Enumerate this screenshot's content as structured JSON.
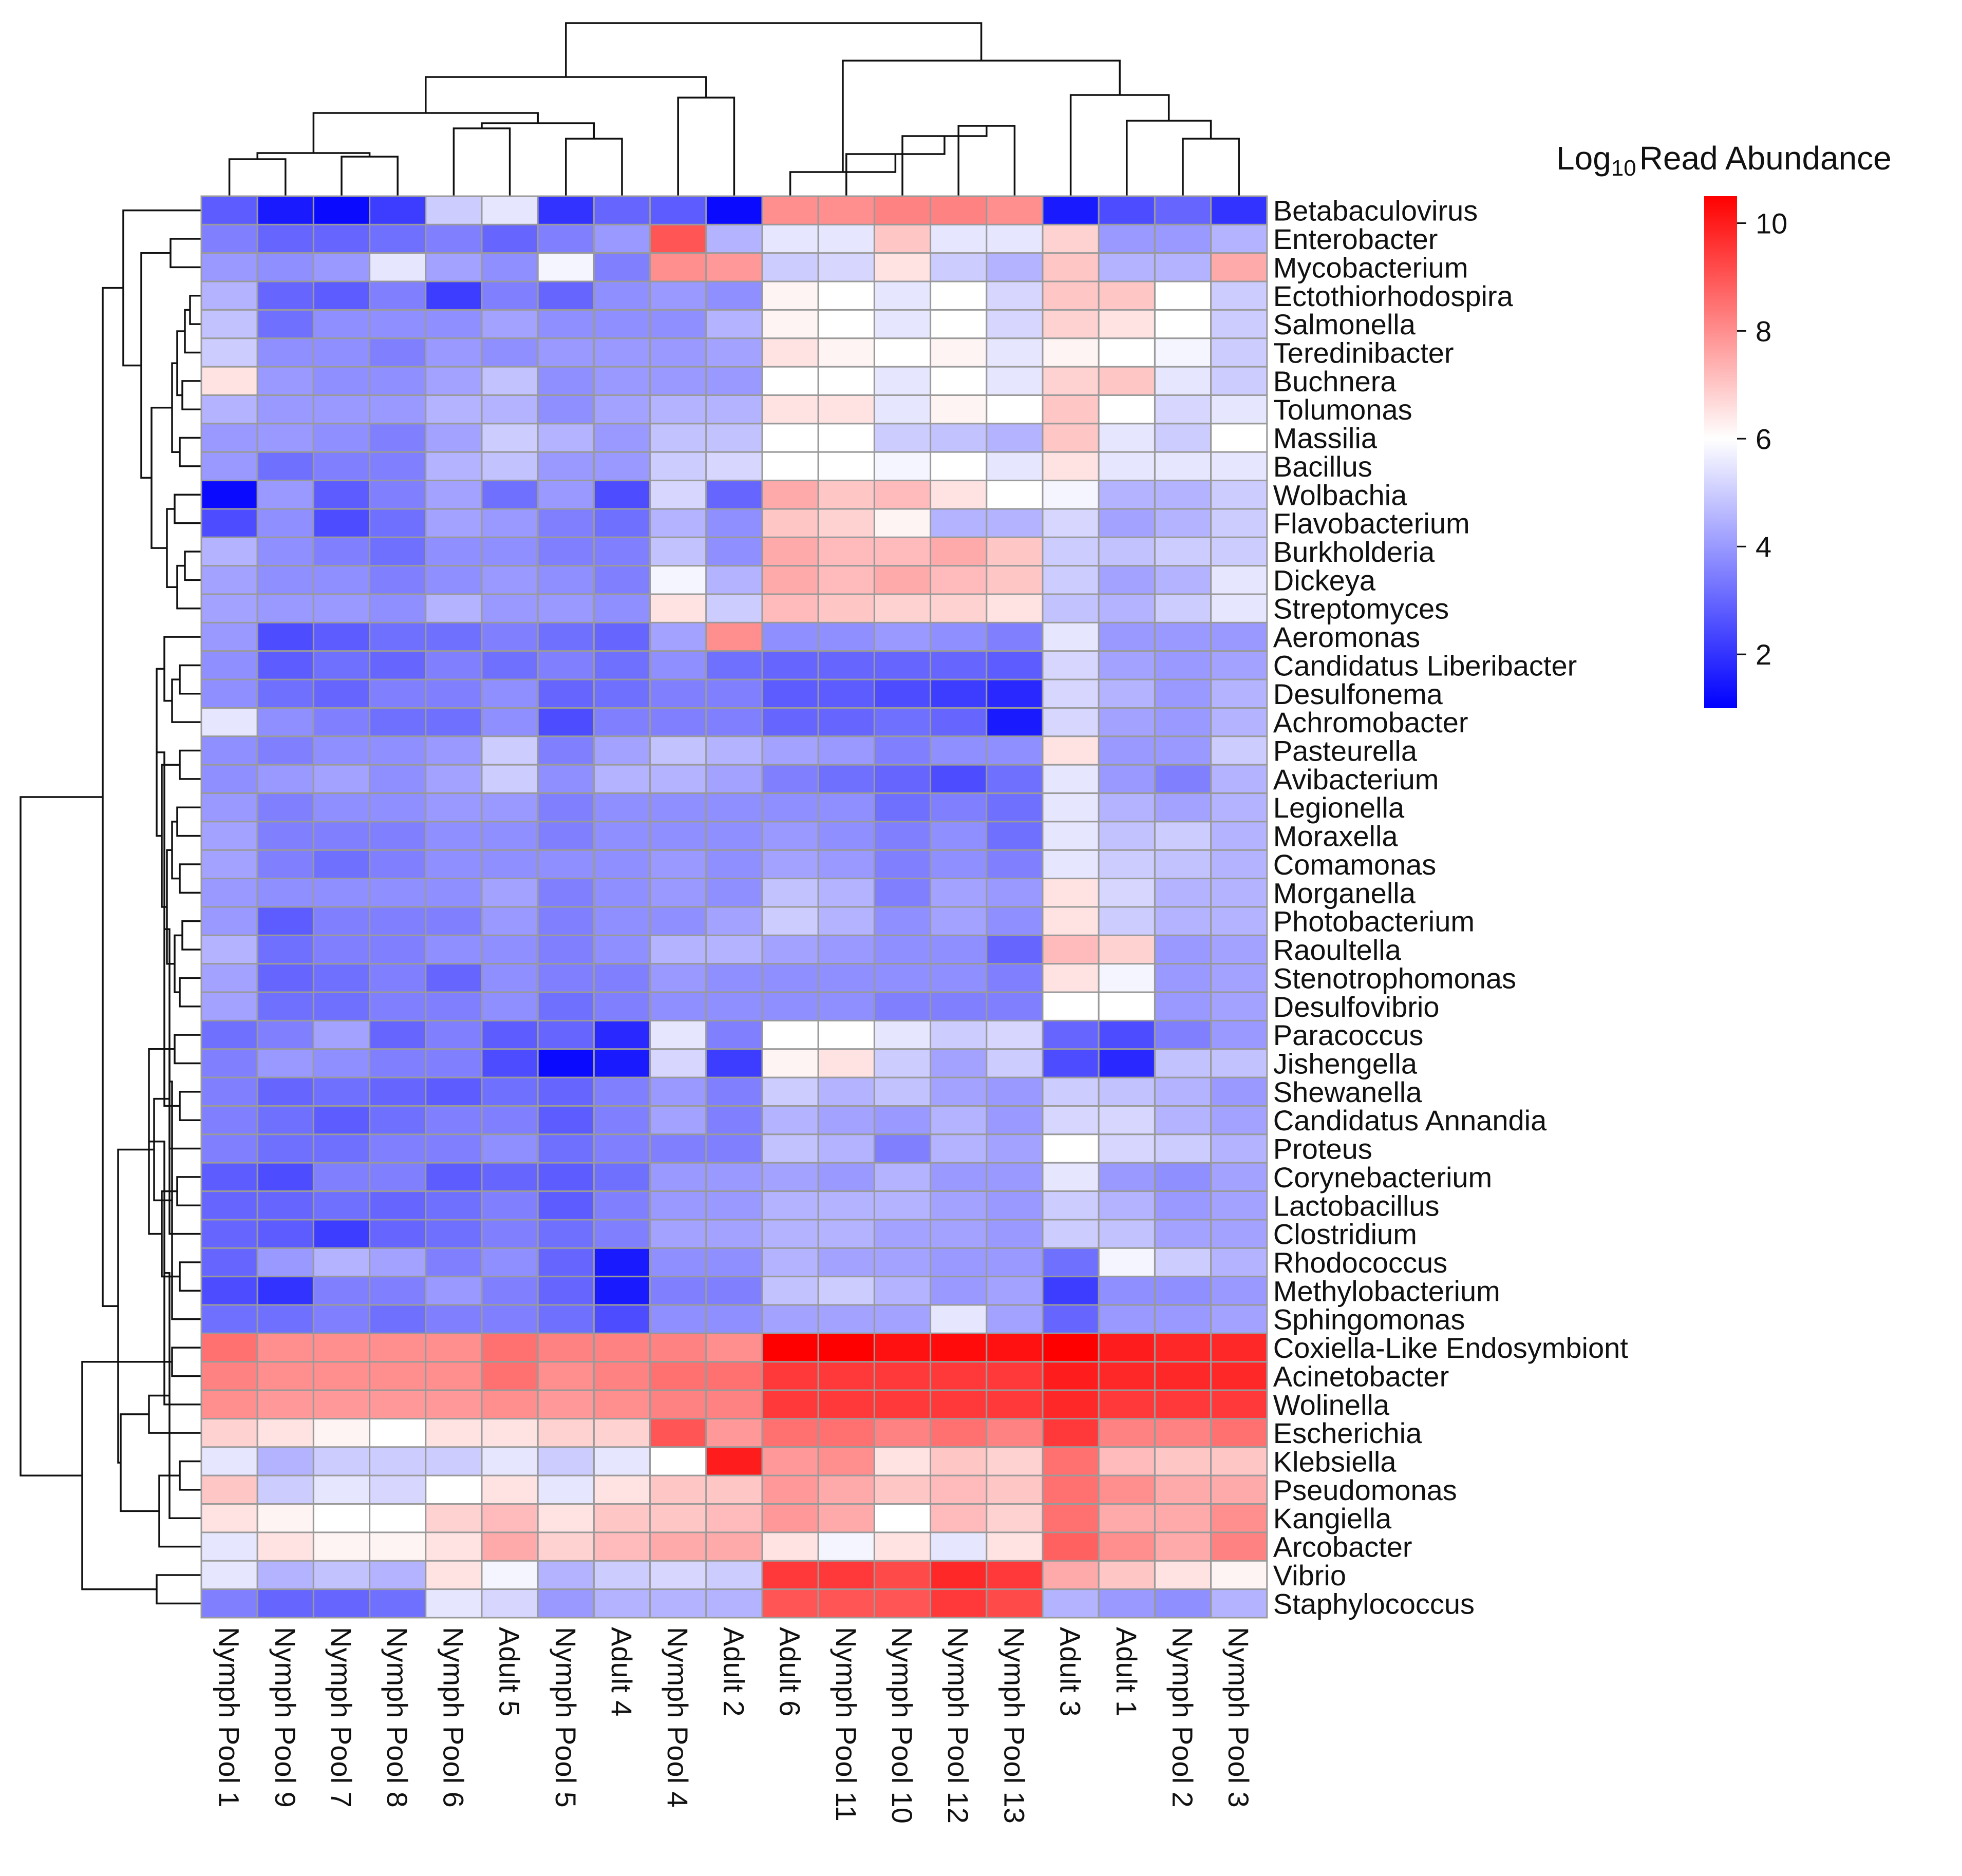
{
  "chart_data": {
    "type": "heatmap",
    "title": "",
    "legend": {
      "title_prefix": "Log",
      "title_sub": "10",
      "title_suffix": "Read Abundance",
      "min": 1,
      "max": 10.5,
      "ticks": [
        2,
        4,
        6,
        8,
        10
      ],
      "colors": [
        "#0000ff",
        "#ffffff",
        "#ff0000"
      ],
      "midpoint": 6,
      "placement": "top-right"
    },
    "columns": [
      "Nymph Pool 1",
      "Nymph Pool 9",
      "Nymph Pool 7",
      "Nymph Pool 8",
      "Nymph Pool 6",
      "Adult 5",
      "Nymph Pool 5",
      "Adult 4",
      "Nymph Pool 4",
      "Adult 2",
      "Adult 6",
      "Nymph Pool 11",
      "Nymph Pool 10",
      "Nymph Pool 12",
      "Nymph Pool 13",
      "Adult 3",
      "Adult 1",
      "Nymph Pool 2",
      "Nymph Pool 3"
    ],
    "rows": [
      "Betabaculovirus",
      "Enterobacter",
      "Mycobacterium",
      "Ectothiorhodospira",
      "Salmonella",
      "Teredinibacter",
      "Buchnera",
      "Tolumonas",
      "Massilia",
      "Bacillus",
      "Wolbachia",
      "Flavobacterium",
      "Burkholderia",
      "Dickeya",
      "Streptomyces",
      "Aeromonas",
      "Candidatus Liberibacter",
      "Desulfonema",
      "Achromobacter",
      "Pasteurella",
      "Avibacterium",
      "Legionella",
      "Moraxella",
      "Comamonas",
      "Morganella",
      "Photobacterium",
      "Raoultella",
      "Stenotrophomonas",
      "Desulfovibrio",
      "Paracoccus",
      "Jishengella",
      "Shewanella",
      "Candidatus Annandia",
      "Proteus",
      "Corynebacterium",
      "Lactobacillus",
      "Clostridium",
      "Rhodococcus",
      "Methylobacterium",
      "Sphingomonas",
      "Coxiella-Like Endosymbiont",
      "Acinetobacter",
      "Wolinella",
      "Escherichia",
      "Klebsiella",
      "Pseudomonas",
      "Kangiella",
      "Arcobacter",
      "Vibrio",
      "Staphylococcus"
    ],
    "values": [
      [
        2.8,
        1.5,
        1.2,
        2.2,
        5.0,
        5.5,
        2.0,
        3.0,
        2.8,
        1.2,
        8.0,
        8.0,
        8.2,
        8.2,
        8.0,
        1.5,
        2.5,
        3.0,
        2.0
      ],
      [
        3.5,
        3.0,
        3.0,
        3.2,
        3.5,
        3.0,
        3.5,
        4.0,
        9.0,
        4.5,
        5.5,
        5.5,
        7.0,
        5.5,
        5.5,
        6.8,
        4.0,
        4.0,
        4.5
      ],
      [
        4.0,
        3.8,
        4.0,
        5.5,
        4.2,
        3.8,
        5.8,
        3.5,
        8.0,
        7.8,
        5.0,
        5.2,
        6.5,
        5.0,
        4.5,
        7.0,
        4.5,
        4.5,
        7.5
      ],
      [
        4.5,
        3.0,
        2.8,
        3.5,
        2.2,
        3.5,
        3.0,
        3.8,
        4.0,
        3.8,
        6.2,
        6.0,
        5.5,
        6.0,
        5.2,
        7.0,
        7.0,
        6.0,
        5.0
      ],
      [
        4.8,
        3.2,
        3.8,
        3.8,
        3.8,
        4.2,
        3.8,
        3.8,
        3.8,
        4.5,
        6.2,
        6.0,
        5.5,
        6.0,
        5.2,
        6.8,
        6.5,
        6.0,
        5.0
      ],
      [
        5.0,
        3.8,
        3.8,
        3.5,
        4.0,
        3.8,
        4.0,
        4.0,
        4.0,
        4.2,
        6.5,
        6.2,
        6.0,
        6.2,
        5.5,
        6.2,
        6.0,
        5.8,
        5.0
      ],
      [
        6.5,
        4.0,
        3.8,
        3.8,
        4.2,
        4.8,
        3.8,
        4.0,
        4.0,
        4.0,
        6.0,
        6.0,
        5.5,
        6.0,
        5.5,
        6.8,
        7.0,
        5.5,
        5.0
      ],
      [
        4.5,
        4.0,
        4.0,
        4.0,
        4.5,
        4.5,
        3.8,
        4.2,
        4.5,
        4.5,
        6.5,
        6.5,
        5.5,
        6.2,
        6.0,
        7.0,
        6.0,
        5.2,
        5.5
      ],
      [
        4.0,
        4.0,
        3.8,
        3.5,
        4.2,
        5.0,
        4.5,
        4.0,
        4.8,
        4.8,
        6.0,
        6.0,
        5.0,
        4.8,
        4.5,
        7.0,
        5.5,
        5.0,
        6.0
      ],
      [
        4.0,
        3.2,
        3.5,
        3.5,
        4.5,
        4.8,
        4.0,
        4.0,
        5.0,
        5.2,
        6.0,
        6.0,
        5.8,
        6.0,
        5.5,
        6.5,
        5.5,
        5.5,
        5.5
      ],
      [
        1.2,
        4.0,
        2.8,
        3.5,
        4.2,
        3.2,
        4.0,
        2.5,
        5.2,
        3.0,
        7.5,
        7.0,
        7.2,
        6.5,
        6.0,
        5.8,
        4.5,
        4.5,
        5.0
      ],
      [
        2.5,
        3.8,
        2.5,
        3.2,
        4.2,
        4.0,
        3.5,
        3.2,
        4.5,
        3.8,
        7.0,
        6.8,
        6.2,
        4.5,
        4.5,
        5.2,
        4.2,
        4.5,
        5.0
      ],
      [
        4.5,
        3.8,
        3.5,
        3.2,
        3.8,
        3.8,
        3.5,
        3.5,
        4.8,
        3.8,
        7.5,
        7.2,
        7.2,
        7.5,
        7.0,
        5.0,
        4.8,
        5.0,
        5.0
      ],
      [
        4.2,
        3.8,
        3.8,
        3.5,
        3.8,
        4.0,
        3.8,
        3.5,
        5.8,
        4.5,
        7.5,
        7.2,
        7.5,
        7.2,
        7.0,
        5.0,
        4.2,
        4.5,
        5.5
      ],
      [
        4.2,
        4.0,
        4.0,
        3.8,
        4.5,
        4.0,
        4.0,
        3.8,
        6.5,
        5.0,
        7.2,
        7.0,
        6.8,
        6.8,
        6.5,
        4.8,
        4.5,
        5.0,
        5.5
      ],
      [
        4.0,
        2.5,
        2.8,
        3.2,
        3.2,
        3.5,
        3.2,
        3.0,
        4.2,
        8.0,
        3.8,
        3.8,
        4.0,
        3.8,
        3.5,
        5.5,
        4.0,
        4.0,
        4.0
      ],
      [
        3.8,
        2.8,
        3.2,
        3.0,
        3.5,
        3.2,
        3.5,
        3.2,
        3.8,
        3.2,
        3.0,
        3.0,
        3.0,
        3.0,
        2.8,
        5.2,
        4.2,
        4.0,
        4.2
      ],
      [
        3.8,
        3.2,
        3.0,
        3.5,
        3.5,
        3.8,
        3.0,
        3.2,
        3.5,
        3.5,
        2.8,
        2.8,
        2.5,
        2.2,
        1.8,
        5.2,
        4.5,
        4.0,
        4.5
      ],
      [
        5.5,
        3.8,
        3.5,
        3.2,
        3.2,
        3.8,
        2.5,
        3.5,
        3.5,
        3.5,
        3.0,
        3.0,
        3.2,
        3.0,
        1.5,
        5.2,
        4.2,
        4.0,
        4.5
      ],
      [
        3.8,
        3.5,
        3.8,
        3.8,
        4.0,
        5.0,
        3.5,
        4.2,
        4.8,
        4.5,
        4.2,
        4.0,
        3.5,
        3.8,
        3.8,
        6.5,
        4.0,
        4.0,
        5.0
      ],
      [
        3.8,
        4.0,
        4.2,
        3.8,
        4.2,
        5.0,
        3.8,
        4.5,
        4.5,
        4.2,
        3.5,
        3.2,
        3.0,
        2.5,
        3.2,
        5.5,
        4.0,
        3.5,
        4.5
      ],
      [
        4.0,
        3.5,
        3.8,
        3.8,
        4.0,
        4.0,
        3.5,
        3.8,
        3.8,
        3.8,
        3.8,
        3.8,
        3.2,
        3.5,
        3.2,
        5.5,
        4.5,
        4.2,
        4.5
      ],
      [
        4.2,
        3.5,
        3.5,
        3.5,
        3.8,
        3.8,
        3.5,
        3.8,
        3.8,
        3.8,
        4.0,
        3.8,
        3.5,
        3.8,
        3.2,
        5.5,
        4.8,
        5.0,
        4.5
      ],
      [
        4.2,
        3.5,
        3.2,
        3.5,
        3.8,
        3.8,
        3.8,
        3.8,
        4.0,
        3.8,
        4.2,
        4.0,
        3.5,
        3.8,
        3.5,
        5.5,
        5.0,
        4.8,
        4.5
      ],
      [
        4.0,
        3.8,
        3.8,
        3.8,
        3.8,
        4.2,
        3.5,
        3.8,
        4.0,
        3.8,
        4.8,
        4.5,
        3.5,
        4.2,
        4.0,
        6.5,
        5.2,
        4.5,
        4.5
      ],
      [
        4.0,
        2.8,
        3.5,
        3.5,
        3.5,
        4.0,
        3.5,
        3.8,
        3.8,
        4.2,
        5.0,
        4.5,
        3.8,
        4.2,
        3.8,
        6.5,
        5.0,
        4.5,
        4.5
      ],
      [
        4.5,
        3.2,
        3.5,
        3.5,
        3.8,
        3.8,
        3.5,
        3.8,
        4.5,
        4.5,
        4.2,
        4.0,
        3.8,
        3.8,
        3.0,
        7.2,
        6.8,
        4.0,
        4.2
      ],
      [
        4.2,
        3.0,
        3.2,
        3.5,
        3.0,
        3.8,
        3.5,
        3.5,
        4.0,
        3.8,
        3.8,
        3.8,
        3.8,
        3.8,
        3.5,
        6.5,
        5.8,
        4.0,
        4.2
      ],
      [
        4.2,
        3.2,
        3.2,
        3.5,
        3.5,
        3.8,
        3.2,
        3.5,
        3.8,
        3.8,
        3.8,
        3.8,
        3.5,
        3.5,
        3.5,
        6.0,
        6.0,
        4.0,
        4.2
      ],
      [
        3.2,
        3.5,
        4.2,
        3.0,
        3.5,
        2.8,
        3.0,
        1.8,
        5.5,
        3.5,
        6.0,
        6.0,
        5.5,
        5.0,
        5.2,
        3.0,
        2.5,
        3.5,
        4.0
      ],
      [
        3.5,
        4.0,
        3.8,
        3.5,
        3.5,
        2.5,
        1.2,
        1.5,
        5.2,
        2.2,
        6.2,
        6.5,
        5.0,
        4.2,
        5.0,
        2.5,
        1.8,
        4.8,
        4.8
      ],
      [
        3.5,
        3.0,
        3.2,
        3.0,
        2.8,
        3.2,
        3.0,
        3.5,
        4.0,
        3.5,
        5.0,
        4.5,
        4.8,
        4.2,
        4.0,
        5.0,
        4.8,
        4.5,
        4.0
      ],
      [
        3.5,
        3.2,
        2.8,
        3.2,
        3.5,
        3.5,
        2.8,
        3.5,
        4.2,
        3.5,
        4.5,
        4.2,
        4.0,
        4.5,
        4.0,
        5.2,
        5.2,
        4.5,
        4.2
      ],
      [
        3.5,
        3.2,
        3.2,
        3.5,
        3.5,
        3.8,
        3.2,
        3.5,
        3.5,
        3.5,
        4.8,
        4.5,
        3.5,
        4.5,
        4.2,
        6.0,
        5.2,
        5.0,
        4.5
      ],
      [
        2.8,
        2.5,
        3.5,
        3.5,
        2.8,
        3.0,
        2.8,
        3.2,
        4.0,
        4.0,
        4.2,
        4.0,
        4.5,
        4.0,
        4.0,
        5.5,
        4.0,
        3.8,
        4.2
      ],
      [
        3.0,
        3.0,
        3.2,
        3.0,
        3.2,
        3.5,
        2.8,
        3.5,
        4.0,
        4.0,
        4.5,
        4.5,
        4.5,
        4.2,
        4.0,
        5.0,
        4.5,
        4.0,
        4.2
      ],
      [
        3.0,
        2.8,
        2.2,
        3.0,
        3.2,
        3.5,
        3.2,
        3.5,
        4.2,
        4.2,
        4.5,
        4.5,
        4.2,
        4.2,
        4.0,
        5.0,
        4.8,
        4.2,
        4.2
      ],
      [
        3.0,
        4.0,
        4.5,
        4.2,
        3.5,
        3.8,
        3.0,
        1.5,
        3.8,
        3.8,
        4.5,
        4.2,
        4.2,
        4.0,
        4.0,
        3.2,
        5.8,
        5.0,
        4.5
      ],
      [
        2.5,
        2.0,
        3.5,
        3.5,
        4.0,
        3.5,
        3.0,
        1.5,
        3.5,
        3.5,
        4.8,
        5.0,
        4.5,
        4.0,
        4.2,
        2.2,
        3.8,
        3.8,
        4.0
      ],
      [
        3.2,
        3.2,
        3.5,
        3.2,
        3.5,
        3.5,
        3.2,
        2.5,
        3.8,
        3.8,
        4.2,
        4.2,
        4.2,
        5.5,
        4.2,
        3.0,
        4.0,
        4.0,
        4.2
      ],
      [
        8.5,
        8.0,
        8.0,
        8.0,
        8.0,
        8.5,
        8.2,
        8.2,
        8.2,
        8.0,
        10.5,
        10.5,
        10.2,
        10.3,
        10.2,
        10.5,
        10.0,
        9.8,
        9.8
      ],
      [
        8.2,
        8.0,
        8.0,
        8.0,
        8.0,
        8.5,
        8.0,
        8.2,
        8.5,
        8.5,
        9.5,
        9.5,
        9.5,
        9.5,
        9.5,
        10.0,
        9.8,
        9.8,
        9.8
      ],
      [
        8.0,
        7.8,
        7.8,
        7.8,
        7.8,
        8.0,
        7.8,
        8.0,
        8.2,
        8.2,
        9.5,
        9.5,
        9.5,
        9.5,
        9.5,
        9.8,
        9.5,
        9.5,
        9.5
      ],
      [
        6.8,
        6.5,
        6.2,
        6.0,
        6.5,
        6.5,
        6.8,
        6.8,
        9.0,
        7.8,
        8.5,
        8.5,
        8.2,
        8.5,
        8.2,
        9.5,
        8.2,
        8.2,
        8.5
      ],
      [
        5.5,
        4.5,
        5.0,
        5.0,
        5.0,
        5.5,
        5.0,
        5.5,
        6.0,
        10.0,
        7.8,
        8.0,
        6.5,
        7.0,
        6.8,
        8.5,
        7.2,
        7.0,
        7.0
      ],
      [
        7.0,
        5.0,
        5.5,
        5.2,
        6.0,
        6.5,
        5.5,
        6.5,
        7.0,
        7.0,
        7.8,
        7.5,
        7.0,
        7.2,
        7.0,
        8.5,
        8.0,
        7.5,
        7.5
      ],
      [
        6.5,
        6.2,
        6.0,
        6.0,
        6.8,
        7.2,
        6.5,
        7.0,
        7.0,
        7.2,
        7.8,
        7.5,
        6.0,
        7.2,
        6.8,
        8.5,
        7.5,
        7.5,
        8.0
      ],
      [
        5.5,
        6.5,
        6.2,
        6.2,
        6.5,
        7.5,
        6.8,
        7.2,
        7.5,
        7.5,
        6.5,
        5.8,
        6.5,
        5.5,
        6.5,
        8.8,
        8.0,
        7.5,
        8.2
      ],
      [
        5.5,
        4.5,
        4.8,
        4.5,
        6.5,
        5.8,
        4.5,
        5.0,
        5.2,
        5.0,
        9.5,
        9.5,
        9.2,
        9.8,
        9.5,
        7.5,
        7.0,
        6.5,
        6.2
      ],
      [
        3.5,
        3.0,
        3.0,
        3.2,
        5.5,
        5.2,
        4.0,
        4.5,
        4.5,
        4.5,
        9.0,
        9.0,
        9.0,
        9.5,
        9.2,
        4.5,
        4.0,
        3.8,
        4.5
      ]
    ]
  }
}
